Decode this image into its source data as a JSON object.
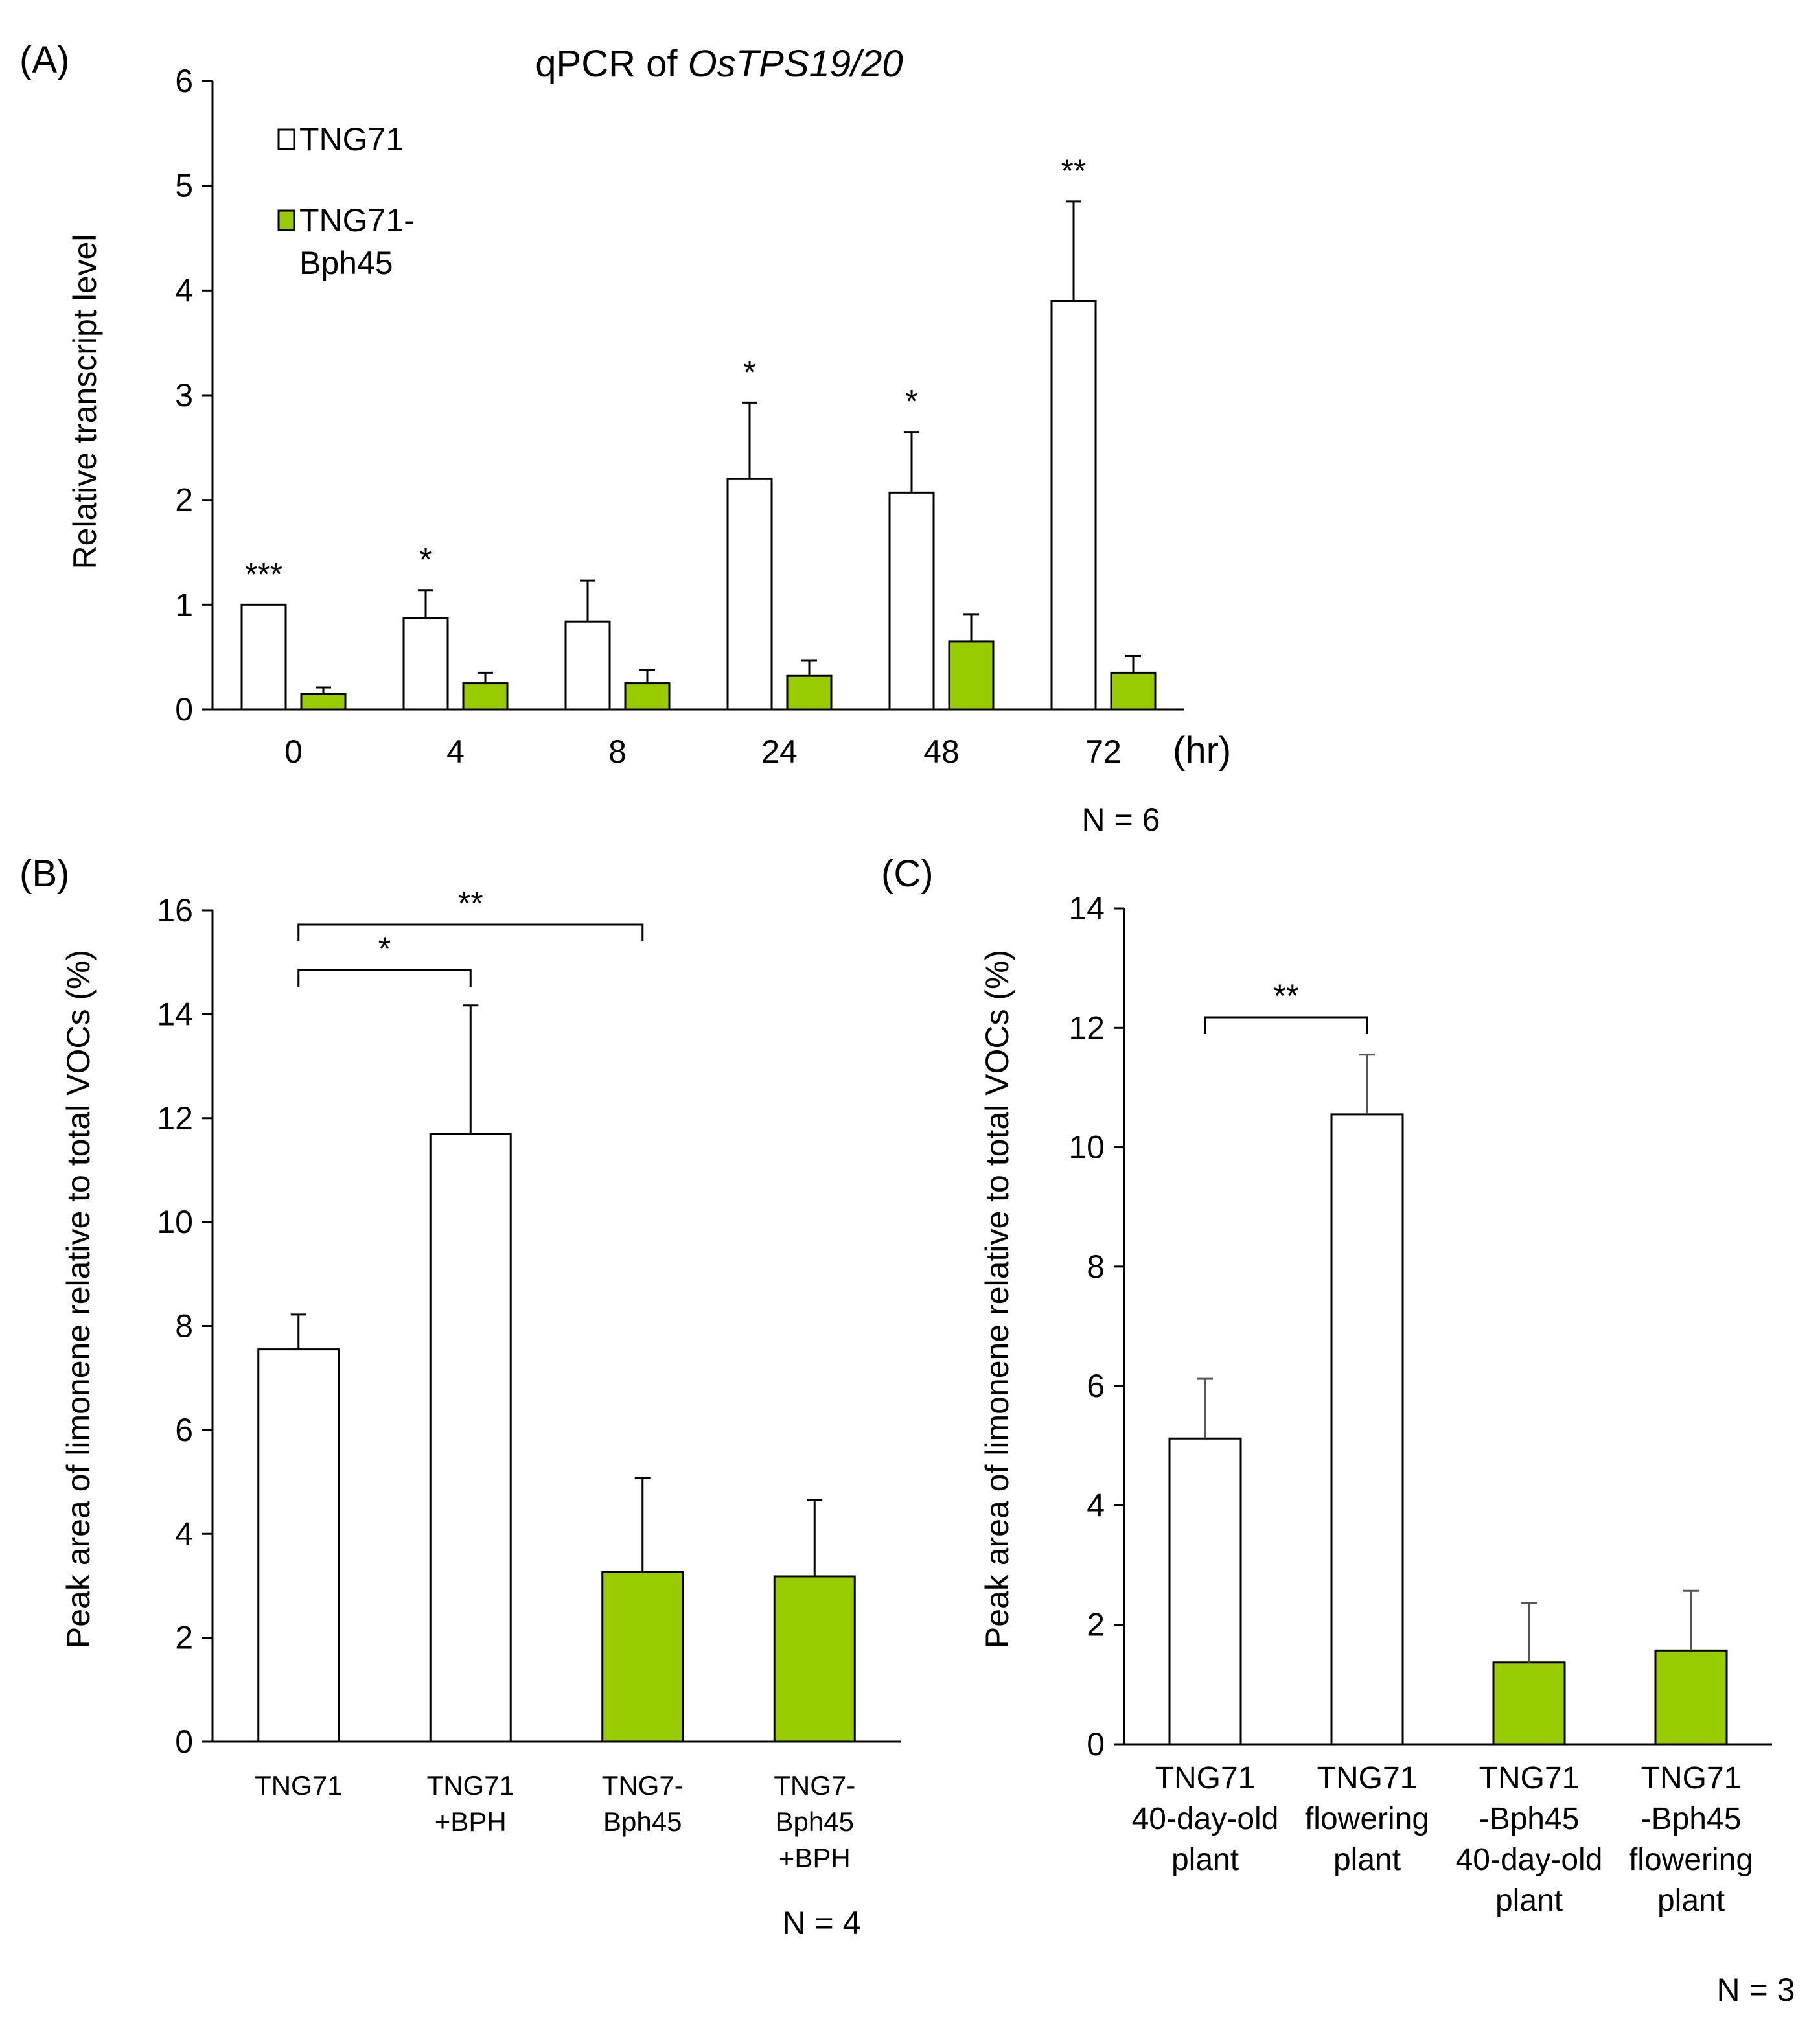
{
  "colors": {
    "control": "#ffffff",
    "bph45": "#99cc00",
    "axis": "#000000",
    "error_bar": "#000000",
    "error_bar_c": "#555555"
  },
  "chart_data": [
    {
      "panel": "(A)",
      "type": "bar",
      "title_prefix": "qPCR of ",
      "title_gene": "OsTPS19/20",
      "ylabel": "Relative transcript level",
      "xunit": "(hr)",
      "note": "N = 6",
      "ylim": [
        0,
        6
      ],
      "yticks": [
        "0",
        "1",
        "2",
        "3",
        "4",
        "5",
        "6"
      ],
      "categories": [
        "0",
        "4",
        "8",
        "24",
        "48",
        "72"
      ],
      "series": [
        {
          "name": "TNG71",
          "values": [
            1.0,
            0.87,
            0.84,
            2.2,
            2.07,
            3.9
          ],
          "errors": [
            0.0,
            0.27,
            0.39,
            0.73,
            0.58,
            0.95
          ]
        },
        {
          "name": "TNG71-Bph45",
          "values": [
            0.15,
            0.25,
            0.25,
            0.32,
            0.65,
            0.35
          ],
          "errors": [
            0.06,
            0.1,
            0.13,
            0.15,
            0.26,
            0.16
          ]
        }
      ],
      "legend": {
        "placement": "top-left",
        "entries": [
          [
            "TNG71"
          ],
          [
            "TNG71-",
            "Bph45"
          ]
        ]
      },
      "significance": [
        "***",
        "*",
        "",
        "*",
        "*",
        "**"
      ]
    },
    {
      "panel": "(B)",
      "type": "bar",
      "ylabel": "Peak area of limonene relative to total VOCs (%)",
      "note": "N = 4",
      "ylim": [
        0,
        16
      ],
      "yticks": [
        "0",
        "2",
        "4",
        "6",
        "8",
        "10",
        "12",
        "14",
        "16"
      ],
      "categories": [
        [
          "TNG71"
        ],
        [
          "TNG71",
          "+BPH"
        ],
        [
          "TNG7-",
          "Bph45"
        ],
        [
          "TNG7-",
          "Bph45",
          "+BPH"
        ]
      ],
      "values": [
        7.55,
        11.7,
        3.27,
        3.18
      ],
      "errors": [
        0.67,
        2.47,
        1.8,
        1.47
      ],
      "groups": [
        "TNG71",
        "TNG71",
        "TNG71-Bph45",
        "TNG71-Bph45"
      ],
      "brackets": [
        {
          "from": 0,
          "to": 1,
          "label": "*"
        },
        {
          "from": 0,
          "to": 2,
          "label": "**"
        }
      ]
    },
    {
      "panel": "(C)",
      "type": "bar",
      "ylabel": "Peak area of limonene relative to total VOCs (%)",
      "note": "N = 3",
      "ylim": [
        0,
        14
      ],
      "yticks": [
        "0",
        "2",
        "4",
        "6",
        "8",
        "10",
        "12",
        "14"
      ],
      "categories": [
        [
          "TNG71",
          "40-day-old",
          "plant"
        ],
        [
          "TNG71",
          "flowering",
          "plant"
        ],
        [
          "TNG71",
          "-Bph45",
          "40-day-old",
          "plant"
        ],
        [
          "TNG71",
          "-Bph45",
          "flowering",
          "plant"
        ]
      ],
      "values": [
        5.12,
        10.55,
        1.37,
        1.57
      ],
      "errors": [
        1.0,
        1.0,
        1.0,
        1.0
      ],
      "groups": [
        "TNG71",
        "TNG71",
        "TNG71-Bph45",
        "TNG71-Bph45"
      ],
      "brackets": [
        {
          "from": 0,
          "to": 1,
          "label": "**"
        }
      ]
    }
  ]
}
